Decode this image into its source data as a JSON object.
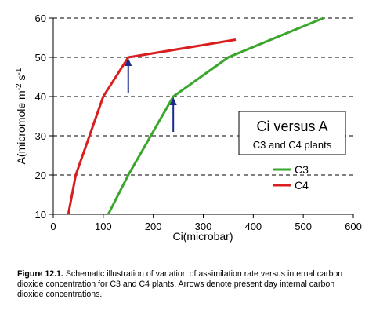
{
  "chart_data": {
    "type": "line",
    "xlabel": "Ci(microbar)",
    "ylabel": "A(micromole m-2 s-1",
    "ylabel_parts": {
      "base": "A(micromole m",
      "sup1": "-2",
      "mid": " s",
      "sup2": "-1"
    },
    "xlim": [
      0,
      600
    ],
    "ylim": [
      10,
      60
    ],
    "xticks": [
      0,
      100,
      200,
      300,
      400,
      500,
      600
    ],
    "yticks": [
      10,
      20,
      30,
      40,
      50,
      60
    ],
    "grid": "horizontal dashed",
    "series": [
      {
        "name": "C3",
        "color": "#3aa62b",
        "points": [
          [
            110,
            10
          ],
          [
            150,
            20
          ],
          [
            240,
            40
          ],
          [
            350,
            50
          ],
          [
            540,
            60
          ]
        ]
      },
      {
        "name": "C4",
        "color": "#d81e1e",
        "points": [
          [
            30,
            10
          ],
          [
            45,
            20
          ],
          [
            100,
            40
          ],
          [
            150,
            50
          ],
          [
            365,
            54.5
          ]
        ]
      }
    ],
    "annotations": {
      "title": "Ci versus A",
      "subtitle": "C3 and C4 plants",
      "arrows": [
        {
          "x": 150,
          "y_from": 41,
          "y_to": 50,
          "color": "#1c2a8c"
        },
        {
          "x": 240,
          "y_from": 31,
          "y_to": 40,
          "color": "#1c2a8c"
        }
      ]
    },
    "legend": {
      "position": "right"
    }
  },
  "caption": {
    "label": "Figure 12.1.",
    "text": " Schematic illustration of variation of assimilation rate versus internal carbon dioxide concentration for C3 and C4 plants. Arrows denote present day internal carbon dioxide concentrations."
  }
}
